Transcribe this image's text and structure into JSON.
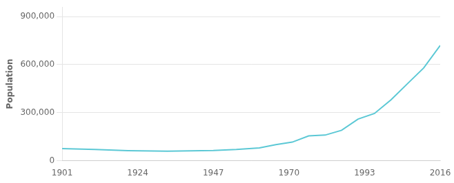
{
  "chart_data": {
    "type": "line",
    "x": [
      1901,
      1911,
      1921,
      1933,
      1947,
      1954,
      1961,
      1966,
      1971,
      1976,
      1981,
      1986,
      1991,
      1996,
      2001,
      2006,
      2011,
      2016
    ],
    "values": [
      76000,
      70000,
      63000,
      60000,
      64000,
      70000,
      80000,
      100000,
      116000,
      155000,
      160000,
      190000,
      260000,
      295000,
      380000,
      480000,
      580000,
      720000
    ],
    "color": "#5bc8d5",
    "ylabel": "Population",
    "xlim": [
      1901,
      2016
    ],
    "xticks": [
      1901,
      1924,
      1947,
      1970,
      1993,
      2016
    ],
    "ylim": [
      0,
      960000
    ],
    "yticks": [
      0,
      {
        "value": 300000,
        "label": "300,000"
      },
      {
        "value": 600000,
        "label": "600,000"
      },
      {
        "value": 900000,
        "label": "900,000"
      }
    ],
    "grid": "y"
  }
}
